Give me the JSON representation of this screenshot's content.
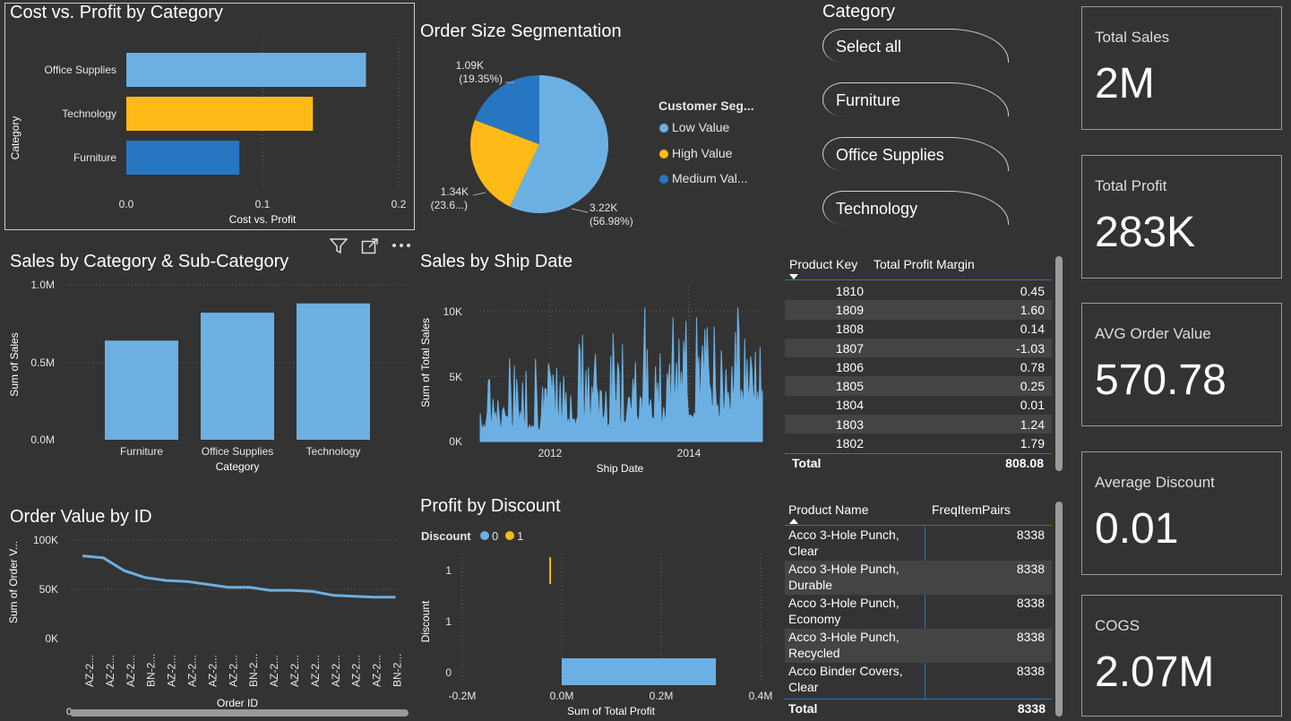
{
  "cost_profit": {
    "title": "Cost vs. Profit by Category",
    "ylabel": "Category",
    "xlabel": "Cost vs. Profit",
    "categories": [
      "Office Supplies",
      "Technology",
      "Furniture"
    ],
    "x_ticks": [
      "0.0",
      "0.1",
      "0.2"
    ]
  },
  "order_size": {
    "title": "Order Size Segmentation",
    "legend_title": "Customer Seg...",
    "legend": [
      "Low Value",
      "High Value",
      "Medium Val..."
    ],
    "labels": [
      {
        "value": "3.22K",
        "pct": "(56.98%)"
      },
      {
        "value": "1.34K",
        "pct": "(23.6...)"
      },
      {
        "value": "1.09K",
        "pct": "(19.35%)"
      }
    ]
  },
  "category_slicer": {
    "title": "Category",
    "options": [
      "Select all",
      "Furniture",
      "Office Supplies",
      "Technology"
    ]
  },
  "cards": [
    {
      "label": "Total Sales",
      "value": "2M"
    },
    {
      "label": "Total Profit",
      "value": "283K"
    },
    {
      "label": "AVG Order Value",
      "value": "570.78"
    },
    {
      "label": "Average Discount",
      "value": "0.01"
    },
    {
      "label": "COGS",
      "value": "2.07M"
    }
  ],
  "sales_cat": {
    "title": "Sales by Category & Sub-Category",
    "ylabel": "Sum of Sales",
    "xlabel": "Category",
    "y_ticks": [
      "1.0M",
      "0.5M",
      "0.0M"
    ]
  },
  "ship_date": {
    "title": "Sales by Ship Date",
    "ylabel": "Sum of Total Sales",
    "xlabel": "Ship Date",
    "y_ticks": [
      "10K",
      "5K",
      "0K"
    ],
    "x_ticks": [
      "2012",
      "2014"
    ]
  },
  "profit_margin_table": {
    "headers": [
      "Product Key",
      "Total Profit Margin"
    ],
    "rows": [
      [
        "1810",
        "0.45"
      ],
      [
        "1809",
        "1.60"
      ],
      [
        "1808",
        "0.14"
      ],
      [
        "1807",
        "-1.03"
      ],
      [
        "1806",
        "0.78"
      ],
      [
        "1805",
        "0.25"
      ],
      [
        "1804",
        "0.01"
      ],
      [
        "1803",
        "1.24"
      ],
      [
        "1802",
        "1.79"
      ]
    ],
    "total_label": "Total",
    "total_value": "808.08"
  },
  "order_value": {
    "title": "Order Value by ID",
    "ylabel": "Sum of Order V...",
    "xlabel": "Order ID",
    "y_ticks": [
      "100K",
      "50K",
      "0K"
    ],
    "x_labels": [
      "AZ-2...",
      "AZ-2...",
      "AZ-2...",
      "BN-2...",
      "AZ-2...",
      "AZ-2...",
      "AZ-2...",
      "AZ-2...",
      "BN-2...",
      "AZ-2...",
      "AZ-2...",
      "AZ-2...",
      "AZ-2...",
      "AZ-2...",
      "AZ-2...",
      "BN-2..."
    ],
    "scroll_value": "0"
  },
  "profit_discount": {
    "title": "Profit by Discount",
    "legend_title": "Discount",
    "legend": [
      "0",
      "1"
    ],
    "ylabel": "Discount",
    "xlabel": "Sum of Total Profit",
    "y_ticks": [
      "1",
      "1",
      "0"
    ],
    "x_ticks": [
      "-0.2M",
      "0.0M",
      "0.2M",
      "0.4M"
    ]
  },
  "freq_table": {
    "headers": [
      "Product Name",
      "FreqItemPairs"
    ],
    "rows": [
      [
        "Acco 3-Hole Punch, Clear",
        "8338"
      ],
      [
        "Acco 3-Hole Punch, Durable",
        "8338"
      ],
      [
        "Acco 3-Hole Punch, Economy",
        "8338"
      ],
      [
        "Acco 3-Hole Punch, Recycled",
        "8338"
      ],
      [
        "Acco Binder Covers, Clear",
        "8338"
      ]
    ],
    "total_label": "Total",
    "total_value": "8338"
  },
  "colors": {
    "light_blue": "#6CB0E3",
    "yellow": "#FFBA17",
    "dark_blue": "#2776C2"
  },
  "chart_data": [
    {
      "type": "bar",
      "orientation": "horizontal",
      "title": "Cost vs. Profit by Category",
      "categories": [
        "Office Supplies",
        "Technology",
        "Furniture"
      ],
      "values": [
        0.176,
        0.137,
        0.083
      ],
      "xlim": [
        0,
        0.2
      ],
      "xlabel": "Cost vs. Profit",
      "ylabel": "Category"
    },
    {
      "type": "pie",
      "title": "Order Size Segmentation",
      "categories": [
        "Low Value",
        "High Value",
        "Medium Value"
      ],
      "values": [
        3220,
        1340,
        1090
      ],
      "percentages": [
        56.98,
        23.67,
        19.35
      ]
    },
    {
      "type": "bar",
      "title": "Sales by Category & Sub-Category",
      "categories": [
        "Furniture",
        "Office Supplies",
        "Technology"
      ],
      "values": [
        640000,
        820000,
        880000
      ],
      "ylim": [
        0,
        1000000
      ],
      "xlabel": "Category",
      "ylabel": "Sum of Sales"
    },
    {
      "type": "area",
      "title": "Sales by Ship Date",
      "x_range": [
        2011,
        2015
      ],
      "ylim": [
        0,
        11000
      ],
      "xlabel": "Ship Date",
      "ylabel": "Sum of Total Sales"
    },
    {
      "type": "line",
      "title": "Order Value by ID",
      "categories": [
        "AZ-2...",
        "AZ-2...",
        "AZ-2...",
        "BN-2...",
        "AZ-2...",
        "AZ-2...",
        "AZ-2...",
        "AZ-2...",
        "BN-2...",
        "AZ-2...",
        "AZ-2...",
        "AZ-2...",
        "AZ-2...",
        "AZ-2...",
        "AZ-2...",
        "BN-2..."
      ],
      "values": [
        84000,
        82000,
        69000,
        62000,
        59000,
        58000,
        55000,
        52000,
        52000,
        49000,
        49000,
        48000,
        44000,
        43000,
        42000,
        42000
      ],
      "ylim": [
        0,
        100000
      ],
      "xlabel": "Order ID",
      "ylabel": "Sum of Order V..."
    },
    {
      "type": "bar",
      "orientation": "horizontal",
      "title": "Profit by Discount",
      "series": [
        {
          "name": "0",
          "values": [
            310000
          ]
        },
        {
          "name": "1",
          "values": [
            -25000
          ]
        }
      ],
      "xlim": [
        -200000,
        400000
      ],
      "xlabel": "Sum of Total Profit",
      "ylabel": "Discount"
    }
  ]
}
